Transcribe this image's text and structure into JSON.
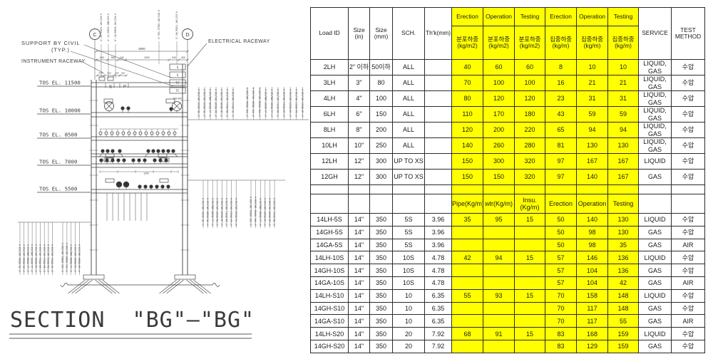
{
  "drawing": {
    "title": "SECTION  \"BG\"—\"BG\"",
    "labels": {
      "support_by_civil_1": "SUPPORT BY CIVIL",
      "support_by_civil_2": "(TYP.)",
      "instrument_raceway": "INSTRUMENT RACEWAY",
      "electrical_raceway": "ELECTRICAL RACEWAY",
      "grid_c": "C",
      "grid_d": "D",
      "beam_s": "S",
      "beam_p": "P"
    },
    "raceway_labels": [
      "S",
      "S",
      "TC",
      "TC"
    ],
    "elevations": [
      "TOS EL. 11500",
      "TOS EL. 10000",
      "TOS EL. 8500",
      "TOS EL. 7000",
      "TOS EL. 5500"
    ],
    "dims": {
      "overall": "5000",
      "segments": [
        "600",
        "540",
        "240",
        "2300",
        "540",
        "600"
      ],
      "left": [
        "470",
        "600",
        "300",
        "300"
      ],
      "raceway": "600 300",
      "el7000": "1200"
    },
    "pipe_tags": {
      "top_left": [
        "4\"-PG-55021-1WC/S10-H",
        "4\"-LS-55023-1WB/S10-H",
        "6\"-CW-55025-1WC/S10-H"
      ],
      "top_d": [
        "4\"-P4C-57502-1WC/S20-H",
        "4\"-DW-55011-1WC/S15-H"
      ],
      "top_right_a": [
        "2\"-PG-55101-1WC/S10-H",
        "2\"-PG-55103-1WC/S10-H",
        "3\"-LS-55105-1WB/S10-H",
        "2\"-IA-55107-1NC/S10-H",
        "2\"-UA-55109-1NC/S10-H",
        "3\"-PW-55111-1WC/S10-H",
        "2\"-FG-55113-1WC/S10-H"
      ],
      "top_right_b": [
        "2\"-P4C-55201-1WC/S20-H",
        "2\"-P4C-55203-1WC/S20-H",
        "3\"-P4C-55205-1WC/S20-H",
        "2\"-LS-55207-1WB/S10-H",
        "2\"-LS-55209-1WB/S10-H",
        "3\"-DW-55211-1WC/S10-H",
        "2\"-CW-55213-1WC/S10-H",
        "2\"-CW-55215-1WC/S10-H",
        "3\"-IA-55217-1NC/S10-H",
        "2\"-UA-55219-1NC/S10-H"
      ],
      "mid_right_a": [
        "4\"-PG-55301-1WC/S10-H",
        "4\"-PG-55303-1WC/S10-H",
        "3\"-LS-55305-1WB/S10-H",
        "4\"-PW-55307-1WC/S10-H",
        "3\"-CW-55309-1WC/S10-H",
        "4\"-DW-55311-1WC/S10-H",
        "3\"-IA-55313-1NC/S10-H",
        "4\"-FG-55315-1WC/S10-H"
      ],
      "mid_right_b": [
        "4\"-P4C-55401-1WC/S20-H",
        "3\"-P4C-55403-1WC/S20-H",
        "4\"-LS-55405-1WB/S10-H",
        "3\"-CW-55407-1WC/S10-H",
        "4\"-UA-55409-1NC/S10-H",
        "3\"-PW-55411-1WC/S10-H"
      ],
      "bottom_left_a": [
        "2\"-PG-55501-1WC/S10-H",
        "2\"-PG-55503-1WC/S10-H",
        "2\"-LS-55505-1WB/S10-H",
        "3\"-LS-55507-1WB/S10-H",
        "2\"-CW-55509-1WC/S10-H",
        "2\"-DW-55511-1WC/S10-H",
        "2\"-IA-55513-1NC/S10-H",
        "3\"-PW-55515-1WC/S10-H",
        "2\"-FG-55517-1WC/S10-H"
      ],
      "bottom_left_b": [
        "4\"-P4C-55601-1WC/S20-H",
        "3\"-P4C-55603-1WC/S20-H",
        "4\"-LS-55605-1WB/S10-H",
        "3\"-CW-55607-1WC/S10-H",
        "4\"-DW-55609-1WC/S10-H"
      ]
    }
  },
  "table": {
    "header": {
      "load_id": "Load ID",
      "size_in": "Size\n(in)",
      "size_mm": "Size\n(mm)",
      "sch": "SCH.",
      "thk": "Th'k(mm)",
      "yellow_top": [
        "Erection",
        "Operation",
        "Testing",
        "Erection",
        "Operation",
        "Testing"
      ],
      "yellow_sub": [
        "분포하중 (kg/m2)",
        "분포하중 (kg/m2)",
        "분포하중 (kg/m2)",
        "집중하중 (kg/m)",
        "집중하중 (kg/m)",
        "집중하중 (kg/m)"
      ],
      "service": "SERVICE",
      "test_method": "TEST METHOD"
    },
    "mid_header": [
      "Pipe(Kg/m)",
      "wtr(Kg/m)",
      "Insu.(Kg/m)",
      "Erection",
      "Operation",
      "Testing"
    ],
    "rows_group1": [
      [
        "2LH",
        "2\" 이하",
        "50이하",
        "ALL",
        "",
        "40",
        "60",
        "60",
        "8",
        "10",
        "10",
        "LIQUID, GAS",
        "수압"
      ],
      [
        "3LH",
        "3\"",
        "80",
        "ALL",
        "",
        "70",
        "100",
        "100",
        "16",
        "21",
        "21",
        "LIQUID, GAS",
        "수압"
      ],
      [
        "4LH",
        "4\"",
        "100",
        "ALL",
        "",
        "80",
        "120",
        "120",
        "23",
        "31",
        "31",
        "LIQUID, GAS",
        "수압"
      ],
      [
        "6LH",
        "6\"",
        "150",
        "ALL",
        "",
        "110",
        "170",
        "180",
        "43",
        "59",
        "59",
        "LIQUID, GAS",
        "수압"
      ],
      [
        "8LH",
        "8\"",
        "200",
        "ALL",
        "",
        "120",
        "200",
        "220",
        "65",
        "94",
        "94",
        "LIQUID, GAS",
        "수압"
      ],
      [
        "10LH",
        "10\"",
        "250",
        "ALL",
        "",
        "140",
        "260",
        "280",
        "81",
        "130",
        "130",
        "LIQUID, GAS",
        "수압"
      ],
      [
        "12LH",
        "12\"",
        "300",
        "UP TO XS",
        "",
        "150",
        "300",
        "320",
        "97",
        "167",
        "167",
        "LIQUID",
        "수압"
      ],
      [
        "12GH",
        "12\"",
        "300",
        "UP TO XS",
        "",
        "150",
        "150",
        "320",
        "97",
        "140",
        "167",
        "GAS",
        "수압"
      ]
    ],
    "rows_group2": [
      [
        "14LH-5S",
        "14\"",
        "350",
        "5S",
        "3.96",
        "35",
        "95",
        "15",
        "50",
        "140",
        "130",
        "LIQUID",
        "수압"
      ],
      [
        "14GH-5S",
        "14\"",
        "350",
        "5S",
        "3.96",
        "",
        "",
        "",
        "50",
        "98",
        "130",
        "GAS",
        "수압"
      ],
      [
        "14GA-5S",
        "14\"",
        "350",
        "5S",
        "3.96",
        "",
        "",
        "",
        "50",
        "98",
        "35",
        "GAS",
        "AIR"
      ],
      [
        "14LH-10S",
        "14\"",
        "350",
        "10S",
        "4.78",
        "42",
        "94",
        "15",
        "57",
        "146",
        "136",
        "LIQUID",
        "수압"
      ],
      [
        "14GH-10S",
        "14\"",
        "350",
        "10S",
        "4.78",
        "",
        "",
        "",
        "57",
        "104",
        "136",
        "GAS",
        "수압"
      ],
      [
        "14GA-10S",
        "14\"",
        "350",
        "10S",
        "4.78",
        "",
        "",
        "",
        "57",
        "104",
        "42",
        "GAS",
        "AIR"
      ],
      [
        "14LH-S10",
        "14\"",
        "350",
        "10",
        "6.35",
        "55",
        "93",
        "15",
        "70",
        "158",
        "148",
        "LIQUID",
        "수압"
      ],
      [
        "14GH-S10",
        "14\"",
        "350",
        "10",
        "6.35",
        "",
        "",
        "",
        "70",
        "117",
        "148",
        "GAS",
        "수압"
      ],
      [
        "14GA-S10",
        "14\"",
        "350",
        "10",
        "6.35",
        "",
        "",
        "",
        "70",
        "117",
        "55",
        "GAS",
        "AIR"
      ],
      [
        "14LH-S20",
        "14\"",
        "350",
        "20",
        "7.92",
        "68",
        "91",
        "15",
        "83",
        "168",
        "159",
        "LIQUID",
        "수압"
      ],
      [
        "14GH-S20",
        "14\"",
        "350",
        "20",
        "7.92",
        "",
        "",
        "",
        "83",
        "129",
        "159",
        "GAS",
        "수압"
      ]
    ]
  }
}
